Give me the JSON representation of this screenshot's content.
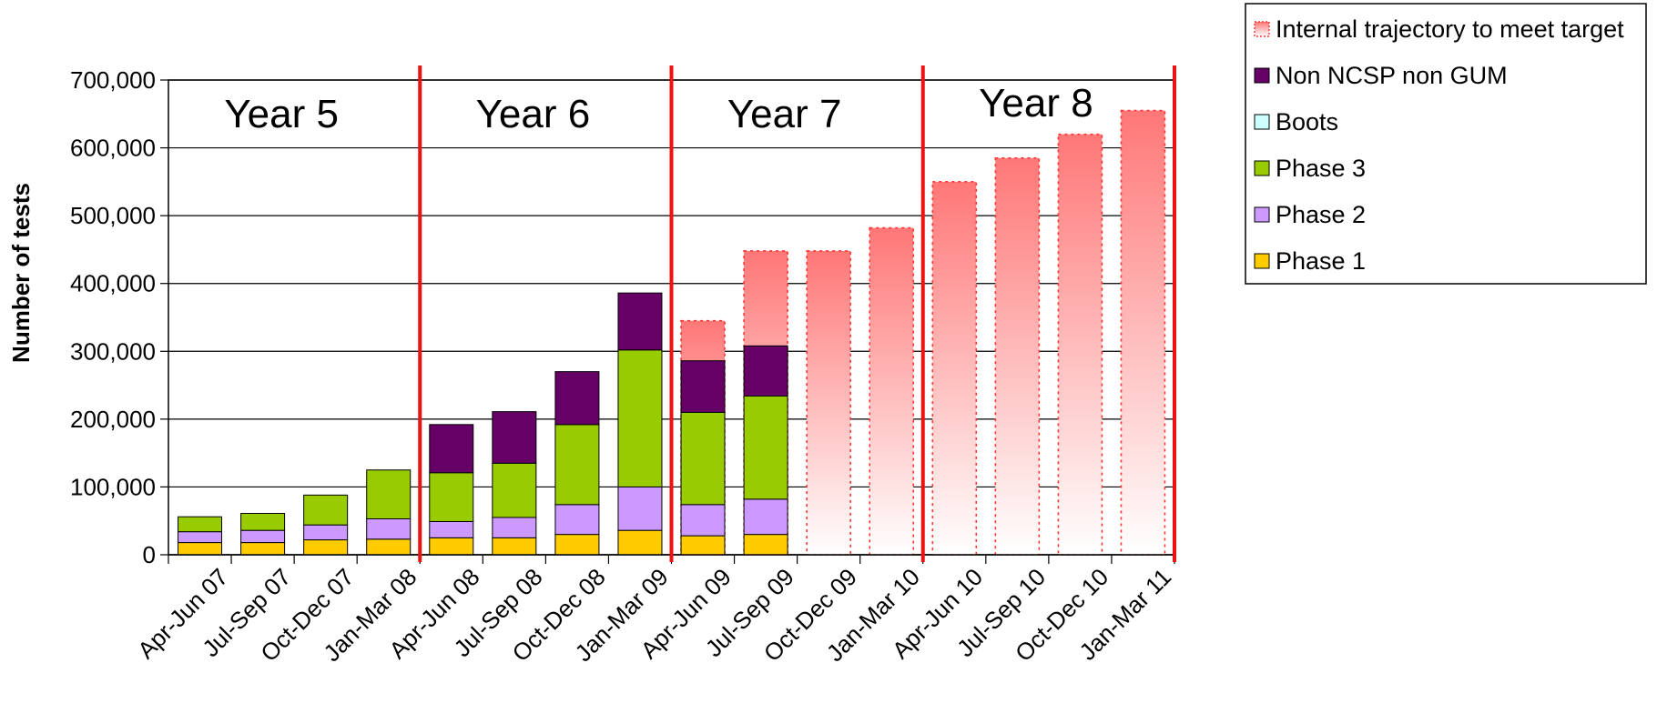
{
  "chart_data": {
    "type": "bar",
    "stacked": true,
    "ylabel": "Number of tests",
    "ylim": [
      0,
      700000
    ],
    "y_ticks": [
      "0",
      "100,000",
      "200,000",
      "300,000",
      "400,000",
      "500,000",
      "600,000",
      "700,000"
    ],
    "grid": true,
    "legend_position": "top-right",
    "categories": [
      "Apr-Jun 07",
      "Jul-Sep 07",
      "Oct-Dec 07",
      "Jan-Mar 08",
      "Apr-Jun 08",
      "Jul-Sep 08",
      "Oct-Dec 08",
      "Jan-Mar 09",
      "Apr-Jun 09",
      "Jul-Sep 09",
      "Oct-Dec 09",
      "Jan-Mar 10",
      "Apr-Jun 10",
      "Jul-Sep 10",
      "Oct-Dec 10",
      "Jan-Mar 11"
    ],
    "series": [
      {
        "name": "Phase 1",
        "color": "#FFCC00",
        "values": [
          18000,
          18000,
          22000,
          23000,
          25000,
          25000,
          30000,
          36000,
          28000,
          30000,
          null,
          null,
          null,
          null,
          null,
          null
        ]
      },
      {
        "name": "Phase 2",
        "color": "#CC99FF",
        "values": [
          16000,
          18000,
          22000,
          30000,
          24000,
          30000,
          44000,
          64000,
          46000,
          52000,
          null,
          null,
          null,
          null,
          null,
          null
        ]
      },
      {
        "name": "Phase 3",
        "color": "#99CC00",
        "values": [
          22000,
          25000,
          44000,
          72000,
          72000,
          80000,
          118000,
          202000,
          136000,
          152000,
          null,
          null,
          null,
          null,
          null,
          null
        ]
      },
      {
        "name": "Boots",
        "color": "#CCFFFF",
        "values": [
          0,
          0,
          0,
          0,
          0,
          0,
          0,
          0,
          0,
          0,
          null,
          null,
          null,
          null,
          null,
          null
        ]
      },
      {
        "name": "Non NCSP non GUM",
        "color": "#660066",
        "values": [
          0,
          0,
          0,
          0,
          71000,
          76000,
          78000,
          84000,
          76000,
          74000,
          null,
          null,
          null,
          null,
          null,
          null
        ]
      }
    ],
    "target": {
      "name": "Internal trajectory to meet target",
      "color": "#FF7777",
      "values": [
        null,
        null,
        null,
        null,
        null,
        null,
        null,
        null,
        345000,
        448000,
        448000,
        482000,
        550000,
        585000,
        620000,
        655000
      ]
    },
    "year_boundaries_after": [
      3,
      7,
      11,
      15
    ],
    "years": [
      {
        "label": "Year 5",
        "start": 0,
        "end": 3
      },
      {
        "label": "Year 6",
        "start": 4,
        "end": 7
      },
      {
        "label": "Year 7",
        "start": 8,
        "end": 11
      },
      {
        "label": "Year 8",
        "start": 12,
        "end": 15
      }
    ],
    "legend": [
      "Internal trajectory to meet target",
      "Non NCSP non GUM",
      "Boots",
      "Phase 3",
      "Phase 2",
      "Phase 1"
    ]
  }
}
